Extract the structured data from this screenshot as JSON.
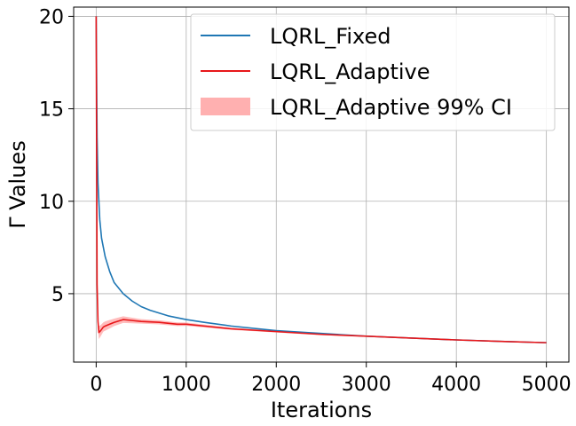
{
  "chart_data": {
    "type": "line",
    "xlabel": "Iterations",
    "ylabel": "Γ Values",
    "xlim": [
      -250,
      5250
    ],
    "ylim": [
      1.3,
      20.5
    ],
    "xticks": [
      0,
      1000,
      2000,
      3000,
      4000,
      5000
    ],
    "xtick_labels": [
      "0",
      "1000",
      "2000",
      "3000",
      "4000",
      "5000"
    ],
    "yticks": [
      5,
      10,
      15,
      20
    ],
    "ytick_labels": [
      "5",
      "10",
      "15",
      "20"
    ],
    "grid": true,
    "legend_position": "top-right",
    "series": [
      {
        "name": "LQRL_Fixed",
        "color": "#1f77b4",
        "x": [
          0,
          10,
          20,
          40,
          60,
          100,
          150,
          200,
          300,
          400,
          500,
          600,
          800,
          1000,
          1200,
          1500,
          2000,
          2500,
          3000,
          3500,
          4000,
          4500,
          5000
        ],
        "y": [
          20.0,
          13.5,
          11.0,
          9.0,
          8.0,
          7.0,
          6.2,
          5.6,
          5.0,
          4.6,
          4.3,
          4.1,
          3.8,
          3.6,
          3.45,
          3.25,
          3.0,
          2.85,
          2.7,
          2.6,
          2.5,
          2.42,
          2.35
        ]
      },
      {
        "name": "LQRL_Adaptive",
        "color": "#e8171a",
        "x": [
          0,
          10,
          20,
          30,
          50,
          80,
          100,
          150,
          200,
          300,
          400,
          500,
          700,
          900,
          1000,
          1200,
          1500,
          2000,
          2500,
          3000,
          3500,
          4000,
          4500,
          5000
        ],
        "y": [
          20.0,
          5.5,
          3.5,
          2.9,
          3.0,
          3.2,
          3.25,
          3.35,
          3.45,
          3.6,
          3.55,
          3.5,
          3.45,
          3.35,
          3.35,
          3.25,
          3.1,
          2.95,
          2.8,
          2.7,
          2.6,
          2.5,
          2.42,
          2.35
        ]
      }
    ],
    "confidence_band": {
      "name": "LQRL_Adaptive 99% CI",
      "color": "#ffb0b0",
      "x": [
        0,
        10,
        20,
        30,
        50,
        80,
        100,
        150,
        200,
        300,
        400,
        500,
        700,
        900,
        1000,
        1200,
        1500,
        2000,
        2500,
        3000,
        3500,
        4000,
        4500,
        5000
      ],
      "lower": [
        20.0,
        5.1,
        3.1,
        2.55,
        2.7,
        2.95,
        3.0,
        3.12,
        3.25,
        3.42,
        3.4,
        3.38,
        3.34,
        3.25,
        3.26,
        3.17,
        3.04,
        2.9,
        2.76,
        2.67,
        2.58,
        2.48,
        2.4,
        2.33
      ],
      "upper": [
        20.0,
        5.9,
        3.9,
        3.25,
        3.3,
        3.45,
        3.5,
        3.58,
        3.65,
        3.78,
        3.7,
        3.62,
        3.56,
        3.45,
        3.44,
        3.33,
        3.16,
        3.0,
        2.84,
        2.73,
        2.62,
        2.52,
        2.44,
        2.37
      ]
    }
  }
}
